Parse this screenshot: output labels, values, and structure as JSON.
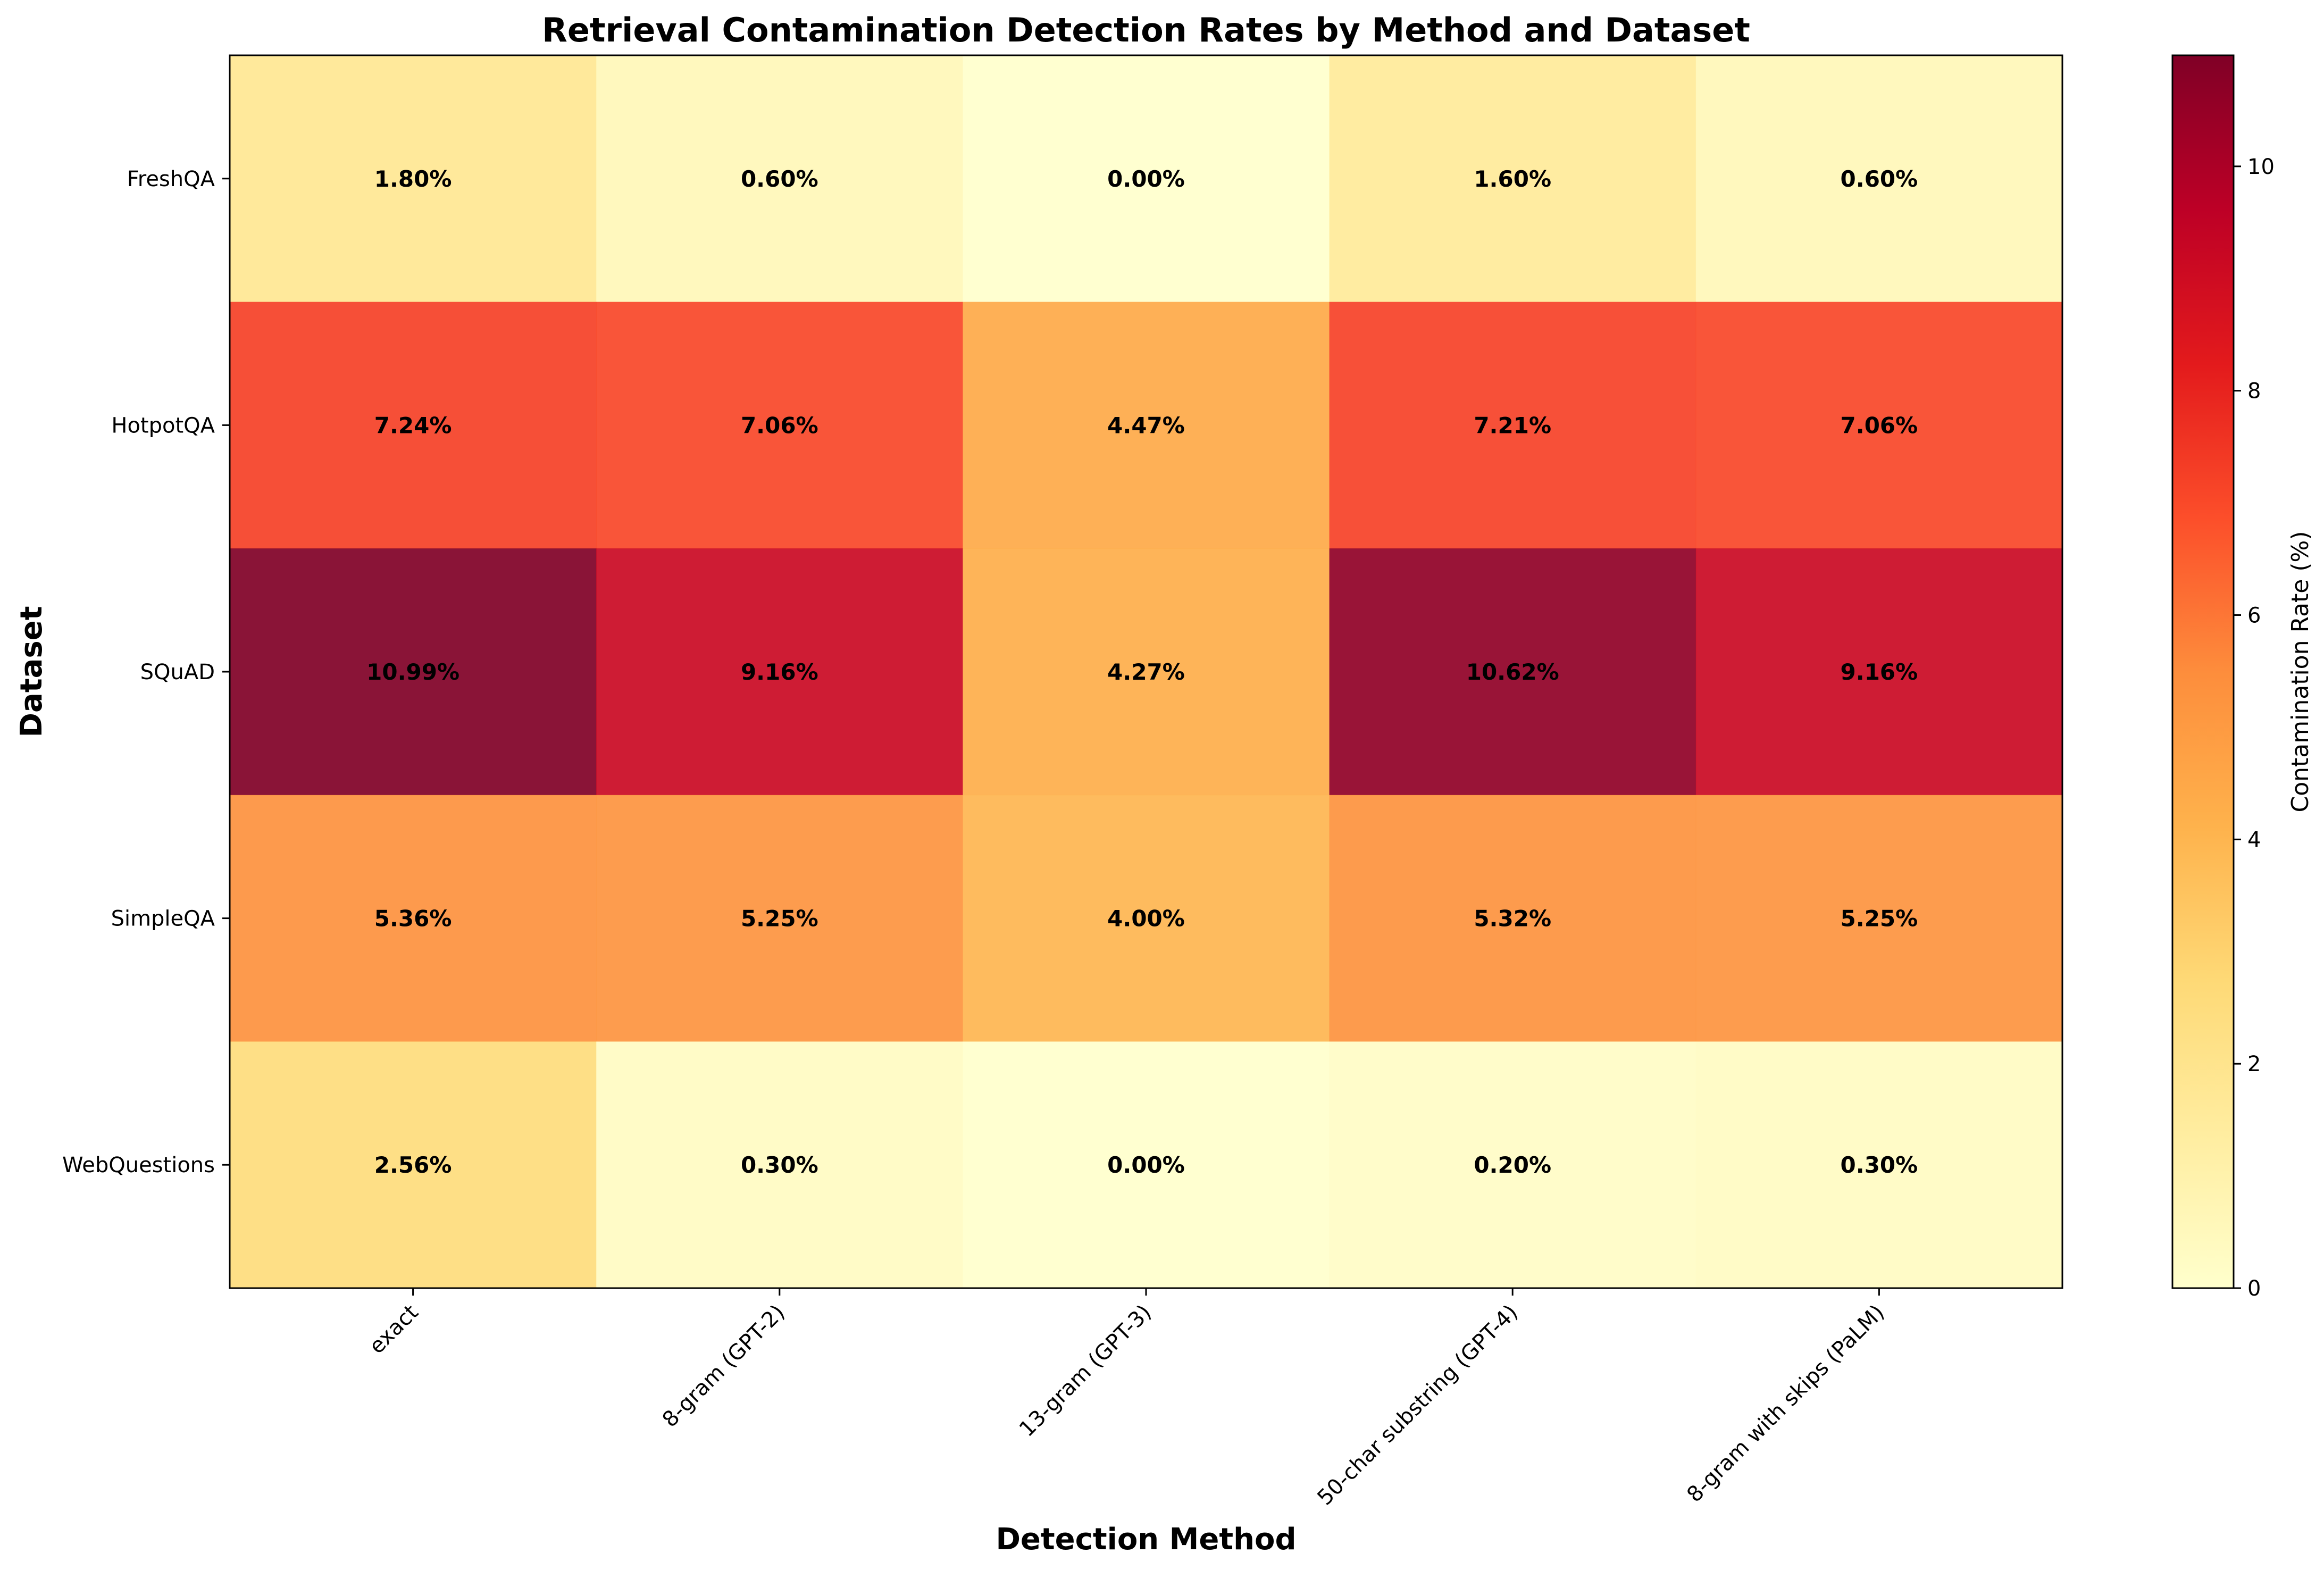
{
  "chart_data": {
    "type": "heatmap",
    "title": "Retrieval Contamination Detection Rates by Method and Dataset",
    "xlabel": "Detection Method",
    "ylabel": "Dataset",
    "x_categories": [
      "exact",
      "8-gram (GPT-2)",
      "13-gram (GPT-3)",
      "50-char substring (GPT-4)",
      "8-gram with skips (PaLM)"
    ],
    "y_categories": [
      "FreshQA",
      "HotpotQA",
      "SQuAD",
      "SimpleQA",
      "WebQuestions"
    ],
    "values": [
      [
        1.8,
        0.6,
        0.0,
        1.6,
        0.6
      ],
      [
        7.24,
        7.06,
        4.47,
        7.21,
        7.06
      ],
      [
        10.99,
        9.16,
        4.27,
        10.62,
        9.16
      ],
      [
        5.36,
        5.25,
        4.0,
        5.32,
        5.25
      ],
      [
        2.56,
        0.3,
        0.0,
        0.2,
        0.3
      ]
    ],
    "cell_labels": [
      [
        "1.80%",
        "0.60%",
        "0.00%",
        "1.60%",
        "0.60%"
      ],
      [
        "7.24%",
        "7.06%",
        "4.47%",
        "7.21%",
        "7.06%"
      ],
      [
        "10.99%",
        "9.16%",
        "4.27%",
        "10.62%",
        "9.16%"
      ],
      [
        "5.36%",
        "5.25%",
        "4.00%",
        "5.32%",
        "5.25%"
      ],
      [
        "2.56%",
        "0.30%",
        "0.00%",
        "0.20%",
        "0.30%"
      ]
    ],
    "colorbar": {
      "label": "Contamination Rate (%)",
      "range": [
        0,
        10.99
      ],
      "ticks": [
        0,
        2,
        4,
        6,
        8,
        10
      ],
      "tick_labels": [
        "0",
        "2",
        "4",
        "6",
        "8",
        "10"
      ],
      "colormap": "YlOrRd"
    },
    "grid": false
  }
}
